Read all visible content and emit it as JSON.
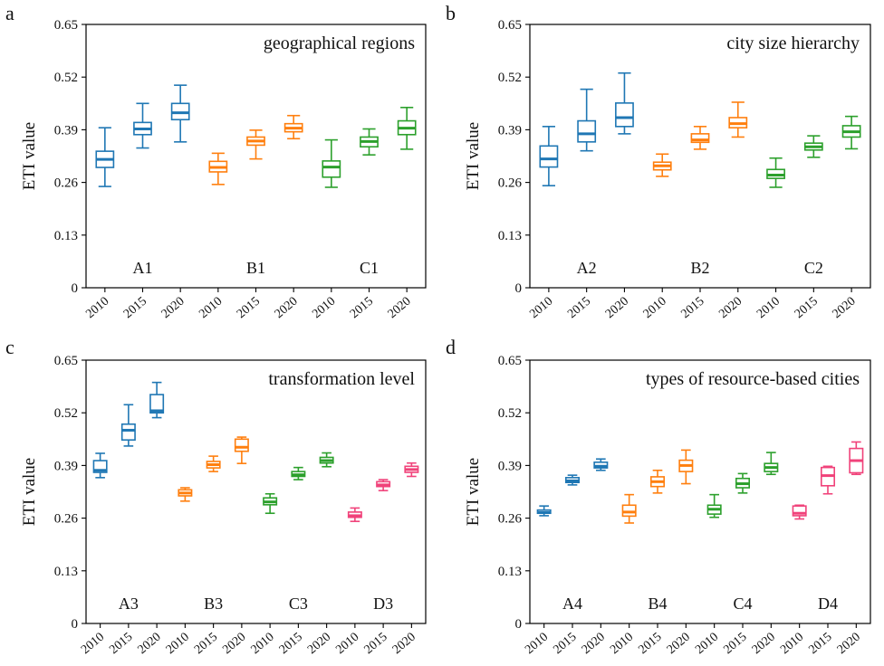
{
  "chart_data": [
    {
      "type": "box",
      "panel_letter": "a",
      "title": "geographical regions",
      "ylabel": "ETI value",
      "ylim": [
        0,
        0.65
      ],
      "yticks": [
        "0",
        "0.13",
        "0.26",
        "0.39",
        "0.52",
        "0.65"
      ],
      "groups": [
        {
          "label": "A1",
          "color": "#1f77b4",
          "boxes": [
            {
              "x": "2010",
              "min": 0.25,
              "q1": 0.297,
              "median": 0.317,
              "q3": 0.337,
              "max": 0.395
            },
            {
              "x": "2015",
              "min": 0.345,
              "q1": 0.378,
              "median": 0.392,
              "q3": 0.408,
              "max": 0.455
            },
            {
              "x": "2020",
              "min": 0.36,
              "q1": 0.415,
              "median": 0.432,
              "q3": 0.455,
              "max": 0.5
            }
          ]
        },
        {
          "label": "B1",
          "color": "#ff7f0e",
          "boxes": [
            {
              "x": "2010",
              "min": 0.255,
              "q1": 0.286,
              "median": 0.297,
              "q3": 0.312,
              "max": 0.332
            },
            {
              "x": "2015",
              "min": 0.318,
              "q1": 0.352,
              "median": 0.362,
              "q3": 0.372,
              "max": 0.389
            },
            {
              "x": "2020",
              "min": 0.368,
              "q1": 0.385,
              "median": 0.394,
              "q3": 0.405,
              "max": 0.425
            }
          ]
        },
        {
          "label": "C1",
          "color": "#2ca02c",
          "boxes": [
            {
              "x": "2010",
              "min": 0.248,
              "q1": 0.273,
              "median": 0.298,
              "q3": 0.313,
              "max": 0.365
            },
            {
              "x": "2015",
              "min": 0.328,
              "q1": 0.348,
              "median": 0.361,
              "q3": 0.372,
              "max": 0.392
            },
            {
              "x": "2020",
              "min": 0.342,
              "q1": 0.378,
              "median": 0.394,
              "q3": 0.412,
              "max": 0.445
            }
          ]
        }
      ]
    },
    {
      "type": "box",
      "panel_letter": "b",
      "title": "city size hierarchy",
      "ylabel": "ETI value",
      "ylim": [
        0,
        0.65
      ],
      "yticks": [
        "0",
        "0.13",
        "0.26",
        "0.39",
        "0.52",
        "0.65"
      ],
      "groups": [
        {
          "label": "A2",
          "color": "#1f77b4",
          "boxes": [
            {
              "x": "2010",
              "min": 0.252,
              "q1": 0.298,
              "median": 0.318,
              "q3": 0.35,
              "max": 0.398
            },
            {
              "x": "2015",
              "min": 0.338,
              "q1": 0.36,
              "median": 0.38,
              "q3": 0.412,
              "max": 0.49
            },
            {
              "x": "2020",
              "min": 0.38,
              "q1": 0.398,
              "median": 0.42,
              "q3": 0.456,
              "max": 0.53
            }
          ]
        },
        {
          "label": "B2",
          "color": "#ff7f0e",
          "boxes": [
            {
              "x": "2010",
              "min": 0.275,
              "q1": 0.291,
              "median": 0.301,
              "q3": 0.31,
              "max": 0.33
            },
            {
              "x": "2015",
              "min": 0.342,
              "q1": 0.359,
              "median": 0.365,
              "q3": 0.38,
              "max": 0.398
            },
            {
              "x": "2020",
              "min": 0.372,
              "q1": 0.395,
              "median": 0.405,
              "q3": 0.42,
              "max": 0.458
            }
          ]
        },
        {
          "label": "C2",
          "color": "#2ca02c",
          "boxes": [
            {
              "x": "2010",
              "min": 0.248,
              "q1": 0.27,
              "median": 0.278,
              "q3": 0.292,
              "max": 0.32
            },
            {
              "x": "2015",
              "min": 0.322,
              "q1": 0.34,
              "median": 0.348,
              "q3": 0.357,
              "max": 0.375
            },
            {
              "x": "2020",
              "min": 0.343,
              "q1": 0.372,
              "median": 0.385,
              "q3": 0.4,
              "max": 0.423
            }
          ]
        }
      ]
    },
    {
      "type": "box",
      "panel_letter": "c",
      "title": "transformation level",
      "ylabel": "ETI value",
      "ylim": [
        0,
        0.65
      ],
      "yticks": [
        "0",
        "0.13",
        "0.26",
        "0.39",
        "0.52",
        "0.65"
      ],
      "groups": [
        {
          "label": "A3",
          "color": "#1f77b4",
          "boxes": [
            {
              "x": "2010",
              "min": 0.36,
              "q1": 0.373,
              "median": 0.378,
              "q3": 0.402,
              "max": 0.42
            },
            {
              "x": "2015",
              "min": 0.438,
              "q1": 0.453,
              "median": 0.477,
              "q3": 0.492,
              "max": 0.54
            },
            {
              "x": "2020",
              "min": 0.508,
              "q1": 0.52,
              "median": 0.525,
              "q3": 0.565,
              "max": 0.595
            }
          ]
        },
        {
          "label": "B3",
          "color": "#ff7f0e",
          "boxes": [
            {
              "x": "2010",
              "min": 0.302,
              "q1": 0.315,
              "median": 0.322,
              "q3": 0.33,
              "max": 0.335
            },
            {
              "x": "2015",
              "min": 0.375,
              "q1": 0.384,
              "median": 0.392,
              "q3": 0.4,
              "max": 0.413
            },
            {
              "x": "2020",
              "min": 0.395,
              "q1": 0.425,
              "median": 0.435,
              "q3": 0.455,
              "max": 0.46
            }
          ]
        },
        {
          "label": "C3",
          "color": "#2ca02c",
          "boxes": [
            {
              "x": "2010",
              "min": 0.272,
              "q1": 0.293,
              "median": 0.3,
              "q3": 0.31,
              "max": 0.32
            },
            {
              "x": "2015",
              "min": 0.355,
              "q1": 0.363,
              "median": 0.367,
              "q3": 0.375,
              "max": 0.385
            },
            {
              "x": "2020",
              "min": 0.387,
              "q1": 0.396,
              "median": 0.402,
              "q3": 0.41,
              "max": 0.421
            }
          ]
        },
        {
          "label": "D3",
          "color": "#f0427a",
          "boxes": [
            {
              "x": "2010",
              "min": 0.252,
              "q1": 0.262,
              "median": 0.266,
              "q3": 0.275,
              "max": 0.285
            },
            {
              "x": "2015",
              "min": 0.328,
              "q1": 0.338,
              "median": 0.342,
              "q3": 0.35,
              "max": 0.355
            },
            {
              "x": "2020",
              "min": 0.363,
              "q1": 0.373,
              "median": 0.38,
              "q3": 0.388,
              "max": 0.396
            }
          ]
        }
      ]
    },
    {
      "type": "box",
      "panel_letter": "d",
      "title": "types of resource-based cities",
      "ylabel": "ETI value",
      "ylim": [
        0,
        0.65
      ],
      "yticks": [
        "0",
        "0.13",
        "0.26",
        "0.39",
        "0.52",
        "0.65"
      ],
      "groups": [
        {
          "label": "A4",
          "color": "#1f77b4",
          "boxes": [
            {
              "x": "2010",
              "min": 0.266,
              "q1": 0.272,
              "median": 0.274,
              "q3": 0.28,
              "max": 0.29
            },
            {
              "x": "2015",
              "min": 0.342,
              "q1": 0.348,
              "median": 0.352,
              "q3": 0.36,
              "max": 0.366
            },
            {
              "x": "2020",
              "min": 0.378,
              "q1": 0.384,
              "median": 0.388,
              "q3": 0.398,
              "max": 0.406
            }
          ]
        },
        {
          "label": "B4",
          "color": "#ff7f0e",
          "boxes": [
            {
              "x": "2010",
              "min": 0.248,
              "q1": 0.265,
              "median": 0.275,
              "q3": 0.292,
              "max": 0.318
            },
            {
              "x": "2015",
              "min": 0.322,
              "q1": 0.338,
              "median": 0.35,
              "q3": 0.362,
              "max": 0.378
            },
            {
              "x": "2020",
              "min": 0.345,
              "q1": 0.375,
              "median": 0.39,
              "q3": 0.403,
              "max": 0.428
            }
          ]
        },
        {
          "label": "C4",
          "color": "#2ca02c",
          "boxes": [
            {
              "x": "2010",
              "min": 0.262,
              "q1": 0.27,
              "median": 0.282,
              "q3": 0.292,
              "max": 0.318
            },
            {
              "x": "2015",
              "min": 0.322,
              "q1": 0.335,
              "median": 0.345,
              "q3": 0.358,
              "max": 0.37
            },
            {
              "x": "2020",
              "min": 0.368,
              "q1": 0.375,
              "median": 0.385,
              "q3": 0.395,
              "max": 0.422
            }
          ]
        },
        {
          "label": "D4",
          "color": "#f0427a",
          "boxes": [
            {
              "x": "2010",
              "min": 0.258,
              "q1": 0.266,
              "median": 0.272,
              "q3": 0.29,
              "max": 0.292
            },
            {
              "x": "2015",
              "min": 0.32,
              "q1": 0.34,
              "median": 0.365,
              "q3": 0.385,
              "max": 0.388
            },
            {
              "x": "2020",
              "min": 0.368,
              "q1": 0.372,
              "median": 0.402,
              "q3": 0.432,
              "max": 0.448
            }
          ]
        }
      ]
    }
  ]
}
